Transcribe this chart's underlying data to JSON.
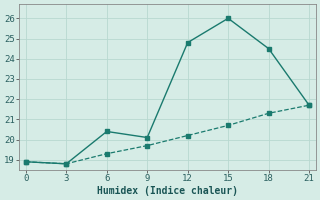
{
  "xlabel": "Humidex (Indice chaleur)",
  "background_color": "#d6ece6",
  "grid_color": "#b8d8d0",
  "line_color": "#1a7a6e",
  "xlim": [
    -0.5,
    21.5
  ],
  "ylim": [
    18.5,
    26.7
  ],
  "xticks": [
    0,
    3,
    6,
    9,
    12,
    15,
    18,
    21
  ],
  "yticks": [
    19,
    20,
    21,
    22,
    23,
    24,
    25,
    26
  ],
  "series1_x": [
    0,
    3,
    6,
    9,
    12,
    15,
    18,
    21
  ],
  "series1_y": [
    18.9,
    18.8,
    20.4,
    20.1,
    24.8,
    26.0,
    24.5,
    21.7
  ],
  "series2_x": [
    0,
    3,
    6,
    9,
    12,
    15,
    18,
    21
  ],
  "series2_y": [
    18.9,
    18.8,
    19.3,
    19.7,
    20.2,
    20.7,
    21.3,
    21.7
  ]
}
